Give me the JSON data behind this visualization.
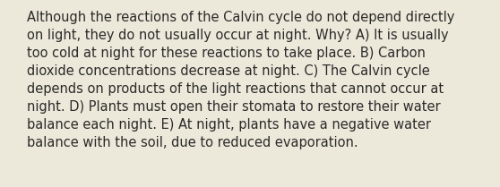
{
  "lines": [
    "Although the reactions of the Calvin cycle do not depend directly",
    "on light, they do not usually occur at night. Why? A) It is usually",
    "too cold at night for these reactions to take place. B) Carbon",
    "dioxide concentrations decrease at night. C) The Calvin cycle",
    "depends on products of the light reactions that cannot occur at",
    "night. D) Plants must open their stomata to restore their water",
    "balance each night. E) At night, plants have a negative water",
    "balance with the soil, due to reduced evaporation."
  ],
  "background_color": "#ede9da",
  "text_color": "#2a2a2a",
  "font_size": 10.5,
  "font_family": "DejaVu Sans",
  "fig_width": 5.58,
  "fig_height": 2.09,
  "dpi": 100
}
